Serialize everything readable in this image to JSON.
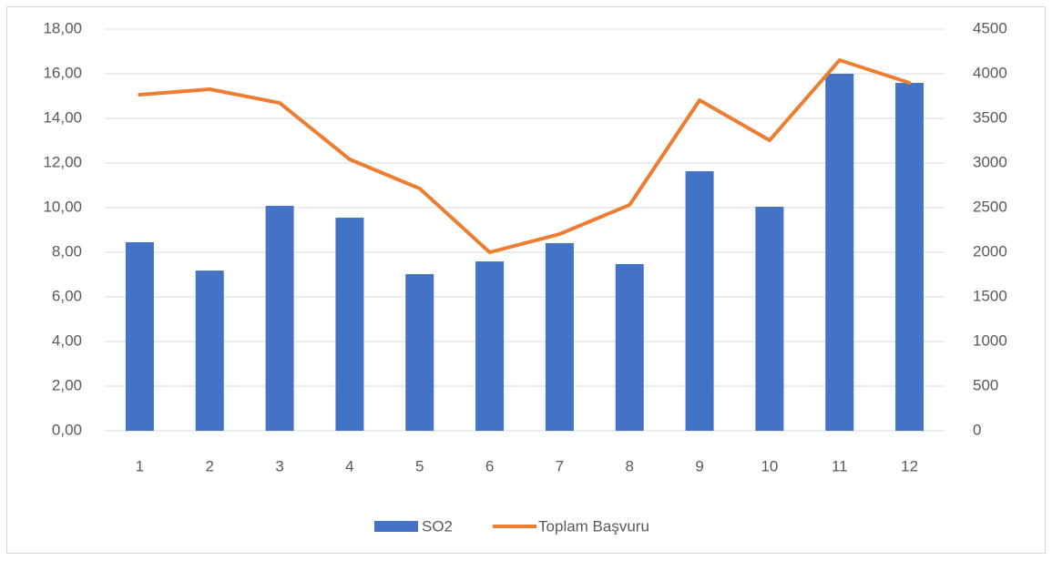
{
  "chart_data": {
    "type": "bar",
    "categories": [
      "1",
      "2",
      "3",
      "4",
      "5",
      "6",
      "7",
      "8",
      "9",
      "10",
      "11",
      "12"
    ],
    "series": [
      {
        "name": "SO2",
        "type": "bar",
        "color": "#4472c4",
        "values": [
          8.45,
          7.18,
          10.08,
          9.55,
          7.02,
          7.59,
          8.41,
          7.47,
          11.63,
          10.04,
          16.0,
          15.59
        ]
      },
      {
        "name": "Toplam Başvuru",
        "type": "line",
        "axis": "y2",
        "color": "#ed7d31",
        "values": [
          3765,
          3827,
          3673,
          3041,
          2714,
          2000,
          2204,
          2531,
          3704,
          3255,
          4153,
          3898
        ]
      }
    ],
    "ylim": [
      0,
      18
    ],
    "yticks": [
      {
        "value": 0,
        "label": "0,00"
      },
      {
        "value": 2,
        "label": "2,00"
      },
      {
        "value": 4,
        "label": "4,00"
      },
      {
        "value": 6,
        "label": "6,00"
      },
      {
        "value": 8,
        "label": "8,00"
      },
      {
        "value": 10,
        "label": "10,00"
      },
      {
        "value": 12,
        "label": "12,00"
      },
      {
        "value": 14,
        "label": "14,00"
      },
      {
        "value": 16,
        "label": "16,00"
      },
      {
        "value": 18,
        "label": "18,00"
      }
    ],
    "y2lim": [
      0,
      4500
    ],
    "y2ticks": [
      0,
      500,
      1000,
      1500,
      2000,
      2500,
      3000,
      3500,
      4000,
      4500
    ],
    "grid": true,
    "legend": "bottom"
  }
}
